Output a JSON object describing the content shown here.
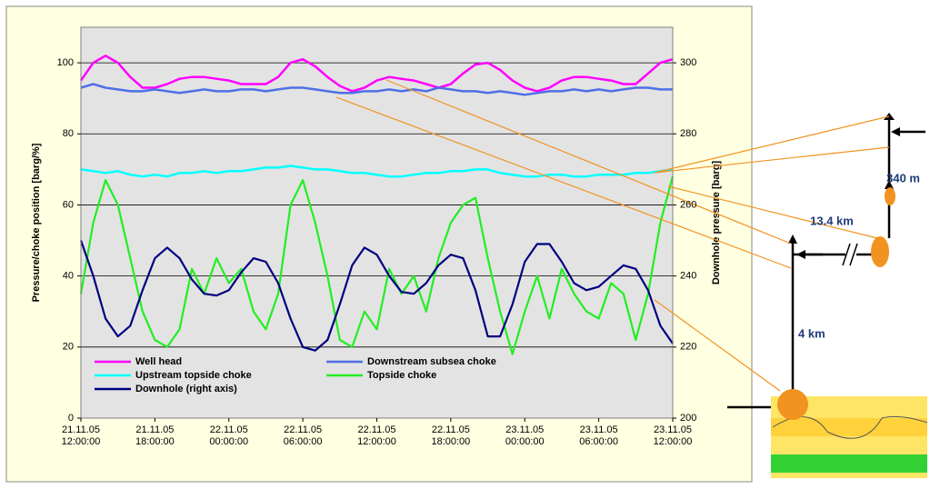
{
  "chart_data": {
    "type": "line",
    "x_label": "",
    "y_label": "Pressure/choke position [barg/%]",
    "y2_label": "Downhole pressure [barg]",
    "x": [
      "2005-11-21T12:00",
      "2005-11-21T13:00",
      "2005-11-21T14:00",
      "2005-11-21T15:00",
      "2005-11-21T16:00",
      "2005-11-21T17:00",
      "2005-11-21T18:00",
      "2005-11-21T19:00",
      "2005-11-21T20:00",
      "2005-11-21T21:00",
      "2005-11-21T22:00",
      "2005-11-21T23:00",
      "2005-11-22T00:00",
      "2005-11-22T01:00",
      "2005-11-22T02:00",
      "2005-11-22T03:00",
      "2005-11-22T04:00",
      "2005-11-22T05:00",
      "2005-11-22T06:00",
      "2005-11-22T07:00",
      "2005-11-22T08:00",
      "2005-11-22T09:00",
      "2005-11-22T10:00",
      "2005-11-22T11:00",
      "2005-11-22T12:00",
      "2005-11-22T13:00",
      "2005-11-22T14:00",
      "2005-11-22T15:00",
      "2005-11-22T16:00",
      "2005-11-22T17:00",
      "2005-11-22T18:00",
      "2005-11-22T19:00",
      "2005-11-22T20:00",
      "2005-11-22T21:00",
      "2005-11-22T22:00",
      "2005-11-22T23:00",
      "2005-11-23T00:00",
      "2005-11-23T01:00",
      "2005-11-23T02:00",
      "2005-11-23T03:00",
      "2005-11-23T04:00",
      "2005-11-23T05:00",
      "2005-11-23T06:00",
      "2005-11-23T07:00",
      "2005-11-23T08:00",
      "2005-11-23T09:00",
      "2005-11-23T10:00",
      "2005-11-23T11:00",
      "2005-11-23T12:00"
    ],
    "series": [
      {
        "name": "Well head",
        "color": "#ff00ff",
        "values": [
          95,
          100,
          102,
          100,
          96,
          93,
          93,
          94,
          95.5,
          96,
          96,
          95.5,
          95,
          94,
          94,
          94,
          96,
          100,
          101,
          99,
          96,
          93.5,
          92,
          93,
          95,
          96,
          95.5,
          95,
          94,
          93,
          94,
          97,
          99.5,
          100,
          98,
          95,
          93,
          92,
          93,
          95,
          96,
          96,
          95.5,
          95,
          94,
          94,
          97,
          100,
          101
        ]
      },
      {
        "name": "Downstream subsea choke",
        "color": "#4f6fe6",
        "values": [
          93,
          94,
          93,
          92.5,
          92,
          92,
          92.5,
          92,
          91.5,
          92,
          92.5,
          92,
          92,
          92.5,
          92.5,
          92,
          92.5,
          93,
          93,
          92.5,
          92,
          91.5,
          91.5,
          92,
          92,
          92.5,
          92,
          92.5,
          92,
          93,
          92.5,
          92,
          92,
          91.5,
          92,
          91.5,
          91,
          91.5,
          92,
          92,
          92.5,
          92,
          92.5,
          92,
          92.5,
          93,
          93,
          92.5,
          92.5
        ]
      },
      {
        "name": "Upstream topside choke",
        "color": "#00ffff",
        "values": [
          70,
          69.5,
          69,
          69.5,
          68.5,
          68,
          68.5,
          68,
          69,
          69,
          69.5,
          69,
          69.5,
          69.5,
          70,
          70.5,
          70.5,
          71,
          70.5,
          70,
          70,
          69.5,
          69,
          69,
          68.5,
          68,
          68,
          68.5,
          69,
          69,
          69.5,
          69.5,
          70,
          70,
          69,
          68.5,
          68,
          68,
          68.5,
          68.5,
          68,
          68,
          68.5,
          68.5,
          68.5,
          69,
          69,
          69.5,
          70
        ]
      },
      {
        "name": "Topside choke",
        "color": "#22ee22",
        "values": [
          35,
          55,
          67,
          60,
          45,
          30,
          22,
          20,
          25,
          42,
          35,
          45,
          38,
          42,
          30,
          25,
          35,
          60,
          67,
          55,
          40,
          22,
          20,
          30,
          25,
          42,
          35,
          40,
          30,
          45,
          55,
          60,
          62,
          45,
          30,
          18,
          30,
          40,
          28,
          42,
          35,
          30,
          28,
          38,
          35,
          22,
          35,
          55,
          68
        ]
      },
      {
        "name": "Downhole (right axis)",
        "color": "#000080",
        "axis": "y2",
        "values": [
          250,
          240,
          228,
          223,
          226,
          236,
          245,
          248,
          245,
          239,
          235,
          234.5,
          236,
          241,
          245,
          244,
          238,
          228,
          220,
          219,
          222,
          232,
          243,
          248,
          246,
          240,
          235.5,
          235,
          238,
          243,
          246,
          245,
          236,
          223,
          223,
          232,
          244,
          249,
          249,
          244,
          238,
          236,
          237,
          240,
          243,
          242,
          236,
          226,
          221
        ]
      }
    ],
    "xlim": [
      "2005-11-21T12:00",
      "2005-11-23T12:00"
    ],
    "xticks": [
      {
        "value": "2005-11-21T12:00",
        "label": "21.11.05\n12:00:00"
      },
      {
        "value": "2005-11-21T18:00",
        "label": "21.11.05\n18:00:00"
      },
      {
        "value": "2005-11-22T00:00",
        "label": "22.11.05\n00:00:00"
      },
      {
        "value": "2005-11-22T06:00",
        "label": "22.11.05\n06:00:00"
      },
      {
        "value": "2005-11-22T12:00",
        "label": "22.11.05\n12:00:00"
      },
      {
        "value": "2005-11-22T18:00",
        "label": "22.11.05\n18:00:00"
      },
      {
        "value": "2005-11-23T00:00",
        "label": "23.11.05\n00:00:00"
      },
      {
        "value": "2005-11-23T06:00",
        "label": "23.11.05\n06:00:00"
      },
      {
        "value": "2005-11-23T12:00",
        "label": "23.11.05\n12:00:00"
      }
    ],
    "ylim": [
      0,
      110
    ],
    "yticks": [
      0,
      20,
      40,
      60,
      80,
      100
    ],
    "y2lim": [
      200,
      310
    ],
    "y2ticks": [
      200,
      220,
      240,
      260,
      280,
      300
    ],
    "grid": true,
    "legend": "lower left"
  },
  "diagram": {
    "labels": [
      "340 m",
      "13.4 km",
      "4 km"
    ]
  }
}
